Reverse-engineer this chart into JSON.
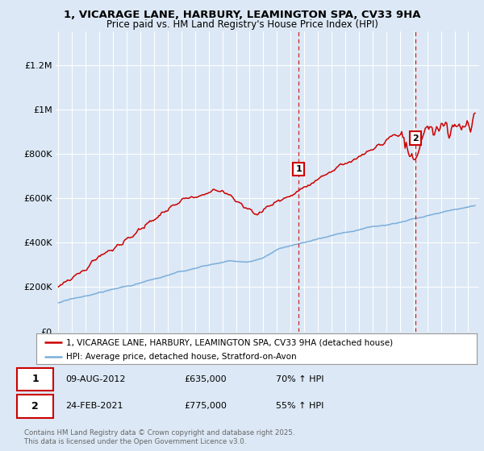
{
  "title_line1": "1, VICARAGE LANE, HARBURY, LEAMINGTON SPA, CV33 9HA",
  "title_line2": "Price paid vs. HM Land Registry's House Price Index (HPI)",
  "yticks": [
    0,
    200000,
    400000,
    600000,
    800000,
    1000000,
    1200000
  ],
  "ytick_labels": [
    "£0",
    "£200K",
    "£400K",
    "£600K",
    "£800K",
    "£1M",
    "£1.2M"
  ],
  "ylim": [
    0,
    1350000
  ],
  "xlim_start": 1994.8,
  "xlim_end": 2025.8,
  "bg_color": "#dce8f5",
  "grid_color": "#ffffff",
  "red_line_color": "#cc0000",
  "blue_line_color": "#7aaedb",
  "marker1_x": 2012.6,
  "marker1_y": 635000,
  "marker1_label": "1",
  "marker2_x": 2021.15,
  "marker2_y": 775000,
  "marker2_label": "2",
  "vline1_x": 2012.6,
  "vline2_x": 2021.15,
  "vline_color": "#cc0000",
  "legend_label_red": "1, VICARAGE LANE, HARBURY, LEAMINGTON SPA, CV33 9HA (detached house)",
  "legend_label_blue": "HPI: Average price, detached house, Stratford-on-Avon",
  "annotation1_box": "1",
  "annotation1_date": "09-AUG-2012",
  "annotation1_price": "£635,000",
  "annotation1_hpi": "70% ↑ HPI",
  "annotation2_box": "2",
  "annotation2_date": "24-FEB-2021",
  "annotation2_price": "£775,000",
  "annotation2_hpi": "55% ↑ HPI",
  "footer": "Contains HM Land Registry data © Crown copyright and database right 2025.\nThis data is licensed under the Open Government Licence v3.0."
}
